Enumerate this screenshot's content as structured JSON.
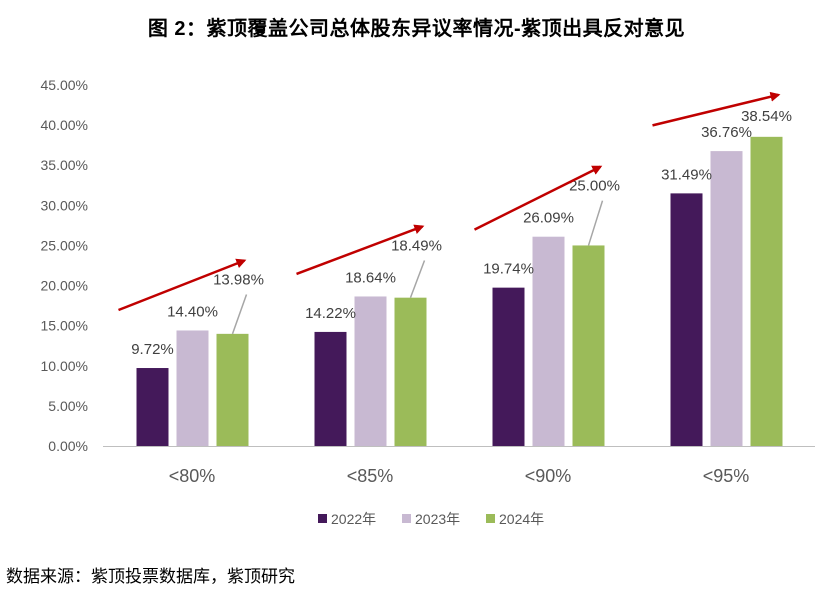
{
  "title": "图 2：紫顶覆盖公司总体股东异议率情况-紫顶出具反对意见",
  "source": "数据来源：紫顶投票数据库，紫顶研究",
  "colors": {
    "s2022": "#44195A",
    "s2023": "#C8B9D2",
    "s2024": "#9BBB59",
    "arrow": "#C00000",
    "axis": "#BFBFBF",
    "connector": "#A6A6A6"
  },
  "chart_data": {
    "type": "bar",
    "categories": [
      "<80%",
      "<85%",
      "<90%",
      "<95%"
    ],
    "series": [
      {
        "name": "2022年",
        "values": [
          9.72,
          14.22,
          19.74,
          31.49
        ],
        "labels": [
          "9.72%",
          "14.22%",
          "19.74%",
          "31.49%"
        ]
      },
      {
        "name": "2023年",
        "values": [
          14.4,
          18.64,
          26.09,
          36.76
        ],
        "labels": [
          "14.40%",
          "18.64%",
          "26.09%",
          "36.76%"
        ]
      },
      {
        "name": "2024年",
        "values": [
          13.98,
          18.49,
          25.0,
          38.54
        ],
        "labels": [
          "13.98%",
          "18.49%",
          "25.00%",
          "38.54%"
        ]
      }
    ],
    "yticks": [
      "0.00%",
      "5.00%",
      "10.00%",
      "15.00%",
      "20.00%",
      "25.00%",
      "30.00%",
      "35.00%",
      "40.00%",
      "45.00%"
    ],
    "ylim": [
      0,
      45
    ],
    "legend_position": "bottom",
    "grid": false
  }
}
